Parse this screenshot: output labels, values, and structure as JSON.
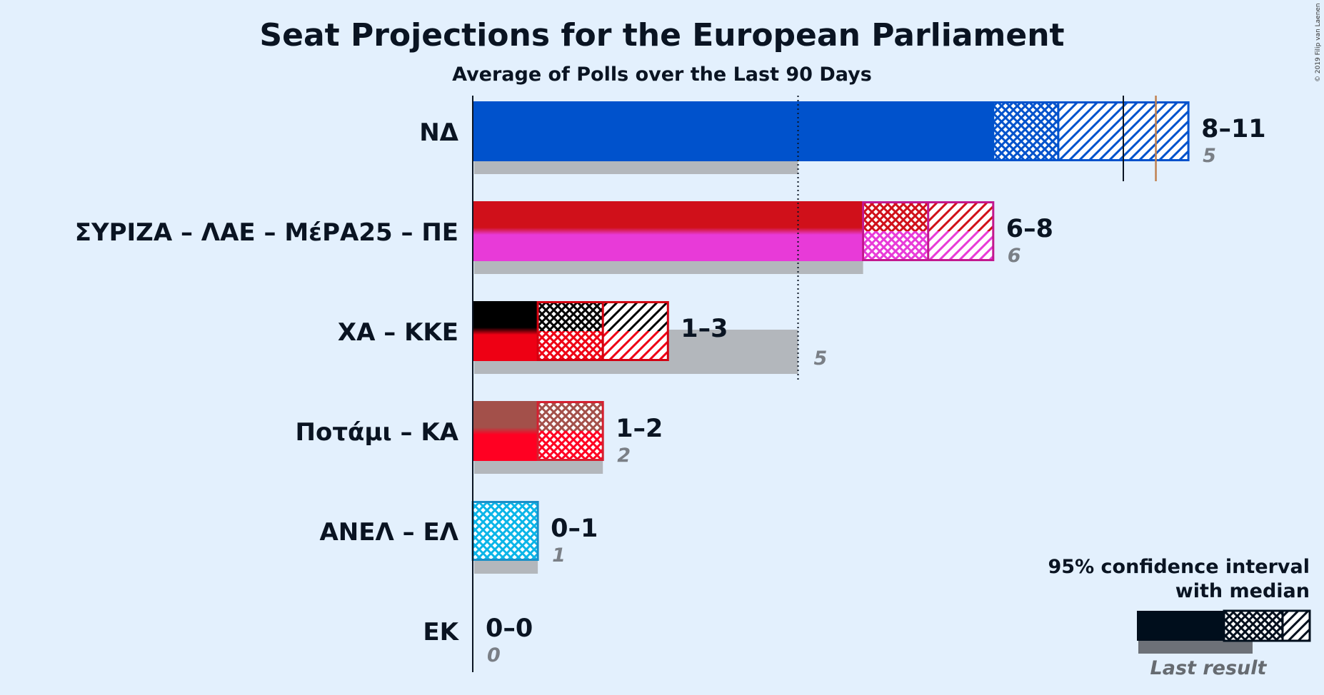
{
  "title": "Seat Projections for the European Parliament",
  "subtitle": "Average of Polls over the Last 90 Days",
  "copyright": "© 2019 Filip van Laenen",
  "legend": {
    "line1": "95% confidence interval",
    "line2": "with median",
    "last_result": "Last result"
  },
  "chart_data": {
    "type": "bar",
    "orientation": "horizontal",
    "title": "Seat Projections for the European Parliament",
    "subtitle": "Average of Polls over the Last 90 Days",
    "majority": 10.5,
    "parties": [
      {
        "name": "ΝΔ",
        "low": 8,
        "median": 9,
        "high": 11,
        "range": "8–11",
        "last": 5,
        "last_label": "5",
        "colors": [
          "#0052cc"
        ],
        "stroke": "#0052cc"
      },
      {
        "name": "ΣΥΡΙΖΑ – ΛΑΕ – ΜέΡΑ25 – ΠΕ",
        "low": 6,
        "median": 7,
        "high": 8,
        "range": "6–8",
        "last": 6,
        "last_label": "6",
        "colors": [
          "#d0101a",
          "#e83ad8"
        ],
        "stroke": "#c2188f"
      },
      {
        "name": "ΧΑ – ΚΚΕ",
        "low": 1,
        "median": 2,
        "high": 3,
        "range": "1–3",
        "last": 5,
        "last_label": "5",
        "colors": [
          "#000000",
          "#ee0014"
        ],
        "stroke": "#d30010"
      },
      {
        "name": "Ποτάμι – ΚΑ",
        "low": 1,
        "median": 2,
        "high": 2,
        "range": "1–2",
        "last": 2,
        "last_label": "2",
        "colors": [
          "#a3504a",
          "#ff0022"
        ],
        "stroke": "#d52030"
      },
      {
        "name": "ΑΝΕΛ – ΕΛ",
        "low": 0,
        "median": 1,
        "high": 1,
        "range": "0–1",
        "last": 1,
        "last_label": "1",
        "colors": [
          "#0ab5e8"
        ],
        "stroke": "#1a90c8"
      },
      {
        "name": "ΕΚ",
        "low": 0,
        "median": 0,
        "high": 0,
        "range": "0–0",
        "last": 0,
        "last_label": "0",
        "colors": [
          "#888888"
        ],
        "stroke": "#888888"
      }
    ]
  }
}
